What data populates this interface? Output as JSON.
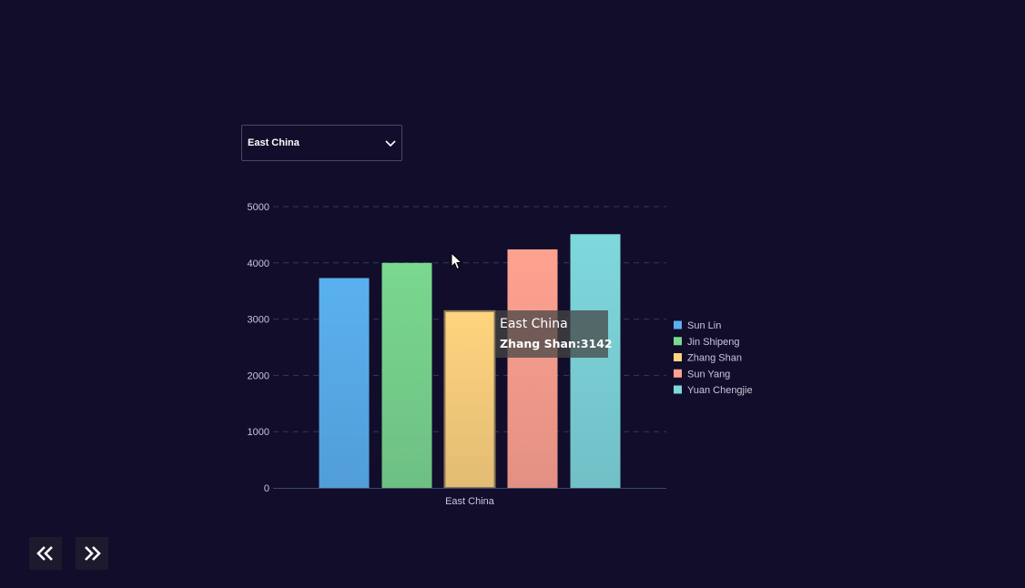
{
  "region_select": {
    "selected": "East China"
  },
  "chart_data": {
    "type": "bar",
    "categories": [
      "East China"
    ],
    "series": [
      {
        "name": "Sun Lin",
        "values": [
          3730
        ],
        "color": "#5ab1ef"
      },
      {
        "name": "Jin Shipeng",
        "values": [
          4000
        ],
        "color": "#7ad88f"
      },
      {
        "name": "Zhang Shan",
        "values": [
          3142
        ],
        "color": "#ffd47e"
      },
      {
        "name": "Sun Yang",
        "values": [
          4240
        ],
        "color": "#ffa290"
      },
      {
        "name": "Yuan Chengjie",
        "values": [
          4510
        ],
        "color": "#7ed8dc"
      }
    ],
    "yticks": [
      0,
      1000,
      2000,
      3000,
      4000,
      5000
    ],
    "ylim": [
      0,
      5000
    ],
    "grid": true,
    "legend_position": "right",
    "title": "",
    "xlabel": "",
    "ylabel": ""
  },
  "tooltip": {
    "title": "East China",
    "series": "Zhang Shan",
    "value": "3142"
  },
  "nav": {
    "prev_icon": "double-chevron-left-icon",
    "next_icon": "double-chevron-right-icon"
  }
}
